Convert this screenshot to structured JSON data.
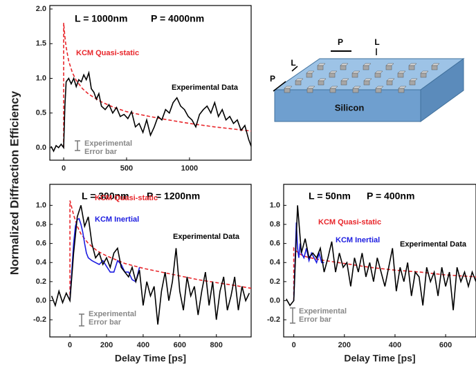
{
  "figure": {
    "ylabel": "Normalized Diffraction Efficiency"
  },
  "diagram": {
    "top_p": "P",
    "top_l": "L",
    "side_l": "L",
    "side_p": "P",
    "material": "Silicon"
  },
  "chart_data": [
    {
      "type": "line",
      "labels": [
        "L = 1000nm",
        "P = 4000nm"
      ],
      "annotations": [
        "Experimental",
        "Error bar"
      ],
      "xlim": [
        -110,
        1490
      ],
      "ylim": [
        -0.18,
        2.05
      ],
      "xticks": [
        0,
        500,
        1000
      ],
      "yticks": [
        {
          "value": 0,
          "label": "0.0"
        },
        0.5,
        {
          "value": 1,
          "label": "1.0"
        },
        1.5,
        {
          "value": 2,
          "label": "2.0"
        }
      ],
      "series": [
        {
          "name": "KCM Quasi-static",
          "color": "#e8252a",
          "style": "dashed",
          "x": [
            0,
            0,
            10,
            20,
            40,
            70,
            100,
            150,
            200,
            300,
            400,
            500,
            600,
            800,
            1000,
            1200,
            1490
          ],
          "values": [
            0,
            1.8,
            1.6,
            1.45,
            1.25,
            1.08,
            0.97,
            0.85,
            0.77,
            0.66,
            0.58,
            0.52,
            0.48,
            0.41,
            0.35,
            0.3,
            0.24
          ]
        },
        {
          "name": "Experimental Data",
          "color": "#000000",
          "style": "solid",
          "x": [
            -100,
            -80,
            -60,
            -40,
            -20,
            0,
            10,
            20,
            40,
            60,
            80,
            100,
            120,
            140,
            160,
            180,
            200,
            220,
            240,
            260,
            280,
            300,
            330,
            360,
            390,
            420,
            450,
            480,
            510,
            540,
            570,
            600,
            630,
            660,
            690,
            720,
            750,
            780,
            810,
            840,
            870,
            900,
            930,
            960,
            990,
            1020,
            1050,
            1080,
            1110,
            1140,
            1170,
            1200,
            1230,
            1260,
            1290,
            1320,
            1350,
            1380,
            1410,
            1440,
            1470,
            1490
          ],
          "values": [
            0.02,
            -0.05,
            0.03,
            0.0,
            0.05,
            0.0,
            0.6,
            0.95,
            1.0,
            0.92,
            1.0,
            0.88,
            0.98,
            0.95,
            1.05,
            0.98,
            1.08,
            0.85,
            0.8,
            0.7,
            0.78,
            0.6,
            0.55,
            0.62,
            0.5,
            0.58,
            0.45,
            0.48,
            0.42,
            0.52,
            0.3,
            0.35,
            0.22,
            0.4,
            0.18,
            0.3,
            0.45,
            0.4,
            0.55,
            0.5,
            0.65,
            0.72,
            0.6,
            0.55,
            0.45,
            0.4,
            0.3,
            0.48,
            0.55,
            0.6,
            0.5,
            0.65,
            0.45,
            0.55,
            0.4,
            0.45,
            0.35,
            0.4,
            0.25,
            0.32,
            0.12,
            0.02
          ]
        }
      ]
    },
    {
      "type": "line",
      "labels": [
        "L = 300nm",
        "P = 1200nm"
      ],
      "annotations": [
        "Experimental",
        "Error bar"
      ],
      "xlabel": "Delay Time [ps]",
      "xlim": [
        -110,
        990
      ],
      "ylim": [
        -0.38,
        1.22
      ],
      "xticks": [
        0,
        200,
        400,
        600,
        800
      ],
      "yticks": [
        -0.2,
        {
          "value": 0,
          "label": "0.0"
        },
        0.2,
        0.4,
        0.6,
        0.8,
        {
          "value": 1,
          "label": "1.0"
        }
      ],
      "series": [
        {
          "name": "KCM Quasi-static",
          "color": "#e8252a",
          "style": "dashed",
          "x": [
            0,
            0,
            20,
            40,
            60,
            100,
            150,
            200,
            300,
            400,
            500,
            600,
            700,
            800,
            900,
            990
          ],
          "values": [
            0,
            1.05,
            0.9,
            0.78,
            0.7,
            0.6,
            0.52,
            0.47,
            0.39,
            0.34,
            0.3,
            0.26,
            0.22,
            0.19,
            0.16,
            0.13
          ]
        },
        {
          "name": "KCM Inertial",
          "color": "#1c1ce0",
          "style": "solid",
          "x": [
            0,
            10,
            20,
            30,
            40,
            50,
            60,
            70,
            80,
            90,
            100,
            120,
            140,
            160,
            180,
            200,
            220,
            240,
            260,
            280,
            300,
            320,
            340,
            360,
            380
          ],
          "values": [
            0.0,
            0.3,
            0.6,
            0.78,
            0.85,
            0.86,
            0.8,
            0.72,
            0.6,
            0.5,
            0.45,
            0.42,
            0.4,
            0.38,
            0.42,
            0.36,
            0.3,
            0.3,
            0.42,
            0.38,
            0.3,
            0.3,
            0.22,
            0.2,
            0.35
          ]
        },
        {
          "name": "Experimental Data",
          "color": "#000000",
          "style": "solid",
          "x": [
            -100,
            -80,
            -60,
            -40,
            -20,
            0,
            20,
            40,
            60,
            80,
            100,
            120,
            140,
            160,
            180,
            200,
            220,
            240,
            260,
            280,
            300,
            320,
            340,
            360,
            380,
            400,
            420,
            440,
            460,
            480,
            500,
            520,
            540,
            560,
            580,
            600,
            620,
            640,
            660,
            680,
            700,
            720,
            740,
            760,
            780,
            800,
            820,
            840,
            860,
            880,
            900,
            920,
            940,
            960,
            980
          ],
          "values": [
            0.05,
            -0.05,
            0.1,
            -0.02,
            0.08,
            0.0,
            0.5,
            0.88,
            1.0,
            0.78,
            0.88,
            0.6,
            0.45,
            0.5,
            0.38,
            0.45,
            0.35,
            0.5,
            0.55,
            0.35,
            0.3,
            0.25,
            0.35,
            0.2,
            0.32,
            -0.05,
            0.2,
            0.05,
            0.15,
            -0.25,
            0.1,
            0.3,
            0.0,
            0.2,
            0.55,
            0.1,
            -0.1,
            0.25,
            0.05,
            0.15,
            -0.15,
            0.1,
            0.3,
            -0.05,
            0.2,
            -0.2,
            0.1,
            0.25,
            -0.1,
            0.05,
            0.25,
            -0.1,
            0.15,
            0.0,
            0.08
          ]
        }
      ]
    },
    {
      "type": "line",
      "labels": [
        "L = 50nm",
        "P = 400nm"
      ],
      "annotations": [
        "Experimental",
        "Error bar"
      ],
      "xlabel": "Delay Time [ps]",
      "xlim": [
        -40,
        720
      ],
      "ylim": [
        -0.38,
        1.22
      ],
      "xticks": [
        0,
        200,
        400,
        600
      ],
      "yticks": [
        -0.2,
        {
          "value": 0,
          "label": "0.0"
        },
        0.2,
        0.4,
        0.6,
        0.8,
        {
          "value": 1,
          "label": "1.0"
        }
      ],
      "series": [
        {
          "name": "KCM Quasi-static",
          "color": "#e8252a",
          "style": "dashed",
          "x": [
            0,
            0,
            10,
            20,
            30,
            50,
            100,
            200,
            300,
            400,
            500,
            600,
            720
          ],
          "values": [
            0,
            0.55,
            0.52,
            0.5,
            0.48,
            0.46,
            0.43,
            0.39,
            0.35,
            0.32,
            0.3,
            0.27,
            0.25
          ]
        },
        {
          "name": "KCM Inertial",
          "color": "#1c1ce0",
          "style": "solid",
          "x": [
            0,
            5,
            10,
            15,
            20,
            25,
            30,
            40,
            50,
            60,
            70,
            80,
            90,
            100,
            110,
            120
          ],
          "values": [
            0,
            0.4,
            0.82,
            0.55,
            0.45,
            0.6,
            0.5,
            0.45,
            0.55,
            0.42,
            0.5,
            0.45,
            0.4,
            0.5,
            0.4,
            0.4
          ]
        },
        {
          "name": "Experimental Data",
          "color": "#000000",
          "style": "solid",
          "x": [
            -30,
            -15,
            0,
            15,
            30,
            45,
            60,
            75,
            90,
            105,
            120,
            135,
            150,
            165,
            180,
            195,
            210,
            225,
            240,
            255,
            270,
            285,
            300,
            315,
            330,
            345,
            360,
            375,
            390,
            405,
            420,
            435,
            450,
            465,
            480,
            495,
            510,
            525,
            540,
            555,
            570,
            585,
            600,
            615,
            630,
            645,
            660,
            675,
            690,
            705,
            720
          ],
          "values": [
            0.02,
            -0.05,
            0.0,
            1.0,
            0.5,
            0.65,
            0.45,
            0.5,
            0.45,
            0.55,
            0.3,
            0.45,
            0.62,
            0.3,
            0.5,
            0.35,
            0.4,
            0.15,
            0.45,
            0.3,
            0.5,
            0.25,
            0.4,
            0.2,
            0.45,
            0.3,
            0.15,
            0.35,
            0.55,
            0.1,
            0.35,
            0.2,
            0.4,
            0.05,
            0.3,
            0.25,
            -0.05,
            0.35,
            0.2,
            0.3,
            0.05,
            0.35,
            0.15,
            0.3,
            -0.1,
            0.35,
            0.2,
            0.3,
            0.15,
            0.3,
            0.2
          ]
        }
      ]
    }
  ]
}
